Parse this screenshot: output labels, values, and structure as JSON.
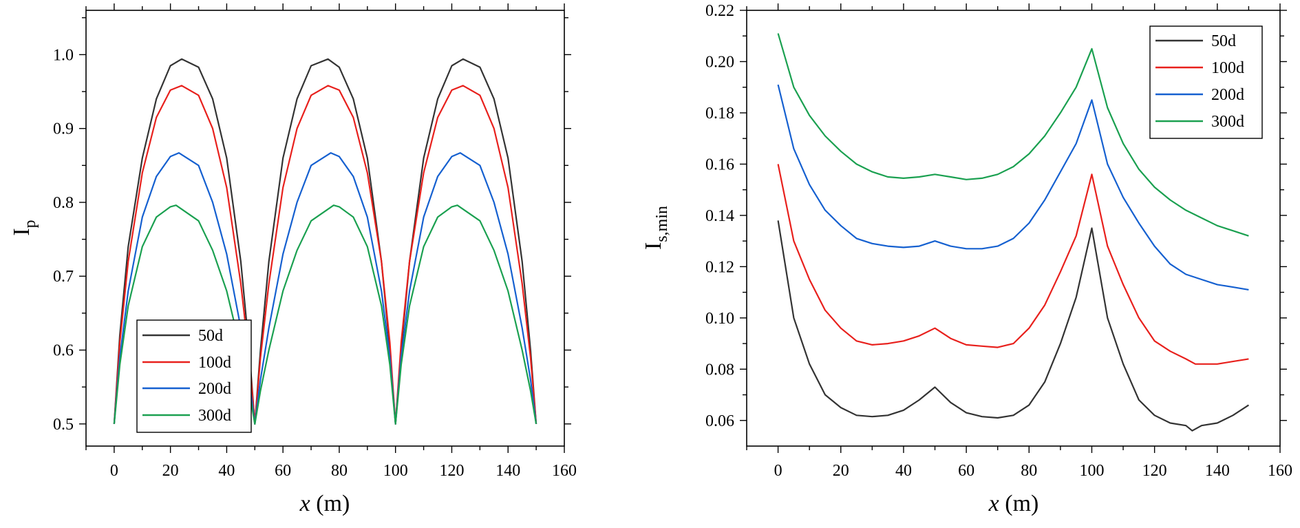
{
  "colors": {
    "50d": "#333333",
    "100d": "#e8201c",
    "200d": "#1560d0",
    "300d": "#1aa050"
  },
  "chart_data": [
    {
      "type": "line",
      "title": "",
      "xlabel_italic": "x",
      "xlabel_unit": "(m)",
      "ylabel_main": "I",
      "ylabel_sub": "p",
      "xlim": [
        -10,
        160
      ],
      "ylim": [
        0.47,
        1.06
      ],
      "xticks": [
        0,
        20,
        40,
        60,
        80,
        100,
        120,
        140,
        160
      ],
      "xtick_labels": [
        "0",
        "20",
        "40",
        "60",
        "80",
        "100",
        "120",
        "140",
        "160"
      ],
      "yticks": [
        0.5,
        0.6,
        0.7,
        0.8,
        0.9,
        1.0
      ],
      "ytick_labels": [
        "0.5",
        "0.6",
        "0.7",
        "0.8",
        "0.9",
        "1.0"
      ],
      "legend_position": "bottom-left",
      "series": [
        {
          "name": "50d",
          "x": [
            0,
            2,
            5,
            10,
            15,
            20,
            24,
            30,
            35,
            40,
            45,
            48,
            50,
            52,
            55,
            60,
            65,
            70,
            76,
            80,
            85,
            90,
            95,
            98,
            100,
            102,
            105,
            110,
            115,
            120,
            124,
            130,
            135,
            140,
            145,
            148,
            150
          ],
          "values": [
            0.5,
            0.62,
            0.74,
            0.86,
            0.94,
            0.985,
            0.994,
            0.983,
            0.94,
            0.86,
            0.72,
            0.6,
            0.5,
            0.6,
            0.72,
            0.86,
            0.94,
            0.985,
            0.994,
            0.983,
            0.94,
            0.86,
            0.72,
            0.6,
            0.5,
            0.6,
            0.72,
            0.86,
            0.94,
            0.985,
            0.994,
            0.983,
            0.94,
            0.86,
            0.72,
            0.6,
            0.5
          ]
        },
        {
          "name": "100d",
          "x": [
            0,
            2,
            5,
            10,
            15,
            20,
            24,
            30,
            35,
            40,
            45,
            48,
            50,
            52,
            55,
            60,
            65,
            70,
            76,
            80,
            85,
            90,
            95,
            98,
            100,
            102,
            105,
            110,
            115,
            120,
            124,
            130,
            135,
            140,
            145,
            148,
            150
          ],
          "values": [
            0.5,
            0.61,
            0.72,
            0.84,
            0.915,
            0.952,
            0.958,
            0.945,
            0.9,
            0.82,
            0.69,
            0.59,
            0.5,
            0.59,
            0.69,
            0.82,
            0.9,
            0.945,
            0.958,
            0.952,
            0.915,
            0.84,
            0.72,
            0.61,
            0.5,
            0.61,
            0.72,
            0.84,
            0.915,
            0.952,
            0.958,
            0.945,
            0.9,
            0.82,
            0.69,
            0.59,
            0.5
          ]
        },
        {
          "name": "200d",
          "x": [
            0,
            2,
            5,
            10,
            15,
            20,
            23,
            30,
            35,
            40,
            45,
            48,
            50,
            52,
            55,
            60,
            65,
            70,
            77,
            80,
            85,
            90,
            95,
            98,
            100,
            102,
            105,
            110,
            115,
            120,
            123,
            130,
            135,
            140,
            145,
            148,
            150
          ],
          "values": [
            0.5,
            0.59,
            0.68,
            0.78,
            0.835,
            0.862,
            0.867,
            0.85,
            0.8,
            0.73,
            0.63,
            0.56,
            0.5,
            0.56,
            0.63,
            0.73,
            0.8,
            0.85,
            0.867,
            0.862,
            0.835,
            0.78,
            0.68,
            0.59,
            0.5,
            0.59,
            0.68,
            0.78,
            0.835,
            0.862,
            0.867,
            0.85,
            0.8,
            0.73,
            0.63,
            0.56,
            0.5
          ]
        },
        {
          "name": "300d",
          "x": [
            0,
            2,
            5,
            10,
            15,
            20,
            22,
            30,
            35,
            40,
            45,
            48,
            50,
            52,
            55,
            60,
            65,
            70,
            78,
            80,
            85,
            90,
            95,
            98,
            100,
            102,
            105,
            110,
            115,
            120,
            122,
            130,
            135,
            140,
            145,
            148,
            150
          ],
          "values": [
            0.5,
            0.58,
            0.66,
            0.74,
            0.78,
            0.794,
            0.796,
            0.775,
            0.735,
            0.68,
            0.6,
            0.545,
            0.5,
            0.545,
            0.6,
            0.68,
            0.735,
            0.775,
            0.796,
            0.794,
            0.78,
            0.74,
            0.66,
            0.58,
            0.5,
            0.58,
            0.66,
            0.74,
            0.78,
            0.794,
            0.796,
            0.775,
            0.735,
            0.68,
            0.6,
            0.545,
            0.5
          ]
        }
      ]
    },
    {
      "type": "line",
      "title": "",
      "xlabel_italic": "x",
      "xlabel_unit": "(m)",
      "ylabel_main": "I",
      "ylabel_sub": "s,min",
      "xlim": [
        -10,
        160
      ],
      "ylim": [
        0.05,
        0.22
      ],
      "xticks": [
        0,
        20,
        40,
        60,
        80,
        100,
        120,
        140,
        160
      ],
      "xtick_labels": [
        "0",
        "20",
        "40",
        "60",
        "80",
        "100",
        "120",
        "140",
        "160"
      ],
      "yticks": [
        0.06,
        0.08,
        0.1,
        0.12,
        0.14,
        0.16,
        0.18,
        0.2,
        0.22
      ],
      "ytick_labels": [
        "0.06",
        "0.08",
        "0.10",
        "0.12",
        "0.14",
        "0.16",
        "0.18",
        "0.20",
        "0.22"
      ],
      "legend_position": "top-right",
      "series": [
        {
          "name": "50d",
          "x": [
            0,
            5,
            10,
            15,
            20,
            25,
            30,
            35,
            40,
            45,
            50,
            55,
            60,
            65,
            70,
            75,
            80,
            85,
            90,
            95,
            100,
            105,
            110,
            115,
            120,
            125,
            130,
            132,
            135,
            140,
            145,
            150
          ],
          "values": [
            0.138,
            0.1,
            0.082,
            0.07,
            0.065,
            0.062,
            0.0615,
            0.062,
            0.064,
            0.068,
            0.073,
            0.067,
            0.063,
            0.0615,
            0.061,
            0.062,
            0.066,
            0.075,
            0.09,
            0.108,
            0.135,
            0.1,
            0.082,
            0.068,
            0.062,
            0.059,
            0.058,
            0.056,
            0.058,
            0.059,
            0.062,
            0.066
          ]
        },
        {
          "name": "100d",
          "x": [
            0,
            5,
            10,
            15,
            20,
            25,
            30,
            35,
            40,
            45,
            50,
            55,
            60,
            65,
            70,
            75,
            80,
            85,
            90,
            95,
            100,
            105,
            110,
            115,
            120,
            125,
            130,
            133,
            140,
            145,
            150
          ],
          "values": [
            0.16,
            0.13,
            0.115,
            0.103,
            0.096,
            0.091,
            0.0895,
            0.09,
            0.091,
            0.093,
            0.096,
            0.092,
            0.0895,
            0.089,
            0.0885,
            0.09,
            0.096,
            0.105,
            0.118,
            0.132,
            0.156,
            0.128,
            0.113,
            0.1,
            0.091,
            0.087,
            0.084,
            0.082,
            0.082,
            0.083,
            0.084
          ]
        },
        {
          "name": "200d",
          "x": [
            0,
            5,
            10,
            15,
            20,
            25,
            30,
            35,
            40,
            45,
            50,
            55,
            60,
            65,
            70,
            75,
            80,
            85,
            90,
            95,
            100,
            105,
            110,
            115,
            120,
            125,
            130,
            135,
            140,
            145,
            150
          ],
          "values": [
            0.191,
            0.166,
            0.152,
            0.142,
            0.136,
            0.131,
            0.129,
            0.128,
            0.1275,
            0.128,
            0.13,
            0.128,
            0.127,
            0.127,
            0.128,
            0.131,
            0.137,
            0.146,
            0.157,
            0.168,
            0.185,
            0.16,
            0.147,
            0.137,
            0.128,
            0.121,
            0.117,
            0.115,
            0.113,
            0.112,
            0.111
          ]
        },
        {
          "name": "300d",
          "x": [
            0,
            5,
            10,
            15,
            20,
            25,
            30,
            35,
            40,
            45,
            50,
            55,
            60,
            65,
            70,
            75,
            80,
            85,
            90,
            95,
            100,
            105,
            110,
            115,
            120,
            125,
            130,
            135,
            140,
            145,
            150
          ],
          "values": [
            0.211,
            0.19,
            0.179,
            0.171,
            0.165,
            0.16,
            0.157,
            0.155,
            0.1545,
            0.155,
            0.156,
            0.155,
            0.154,
            0.1545,
            0.156,
            0.159,
            0.164,
            0.171,
            0.18,
            0.19,
            0.205,
            0.182,
            0.168,
            0.158,
            0.151,
            0.146,
            0.142,
            0.139,
            0.136,
            0.134,
            0.132
          ]
        }
      ]
    }
  ]
}
